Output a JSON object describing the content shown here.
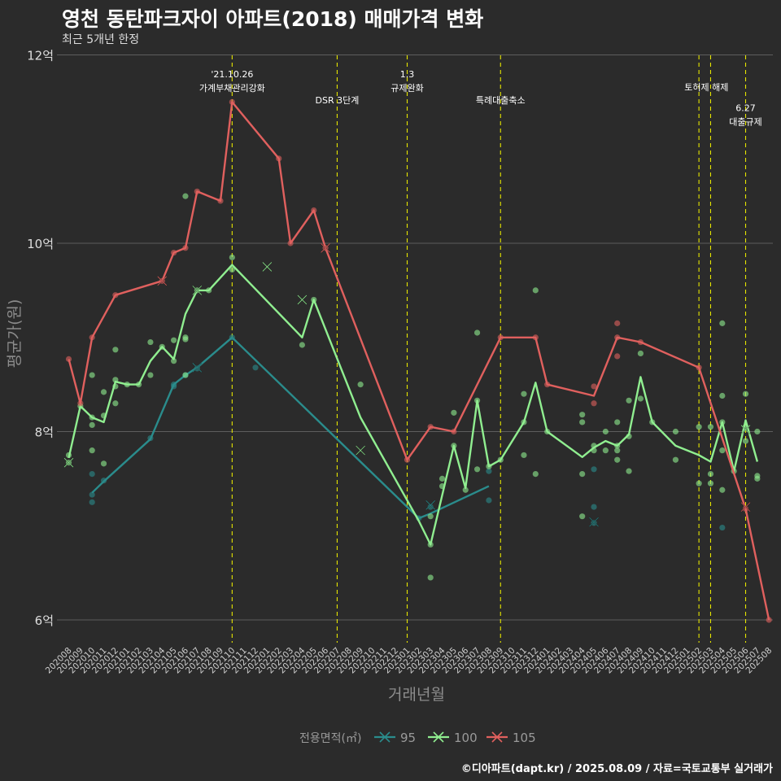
{
  "header": {
    "title": "영천 동탄파크자이 아파트(2018) 매매가격 변화",
    "subtitle": "최근 5개년 한정"
  },
  "caption": "©디아파트(dapt.kr) / 2025.08.09 / 자료=국토교통부 실거래가",
  "chart_data": {
    "type": "line",
    "xlabel": "거래년월",
    "ylabel": "평균가(원)",
    "ylim": [
      5.75,
      12.1
    ],
    "yticks": [
      6,
      8,
      10,
      12
    ],
    "ytick_labels": [
      "6억",
      "8억",
      "10억",
      "12억"
    ],
    "grid": true,
    "legend": {
      "title": "전용면적(㎡)",
      "placement": "bottom",
      "entries": [
        "95",
        "100",
        "105"
      ]
    },
    "x_categories": [
      "202008",
      "202009",
      "202010",
      "202011",
      "202012",
      "202101",
      "202102",
      "202103",
      "202104",
      "202105",
      "202106",
      "202107",
      "202108",
      "202109",
      "202110",
      "202111",
      "202112",
      "202201",
      "202202",
      "202203",
      "202204",
      "202205",
      "202206",
      "202207",
      "202208",
      "202209",
      "202210",
      "202211",
      "202212",
      "202301",
      "202302",
      "202303",
      "202304",
      "202305",
      "202306",
      "202307",
      "202308",
      "202309",
      "202310",
      "202311",
      "202312",
      "202401",
      "202402",
      "202403",
      "202404",
      "202405",
      "202406",
      "202407",
      "202408",
      "202409",
      "202410",
      "202411",
      "202412",
      "202501",
      "202502",
      "202503",
      "202504",
      "202505",
      "202506",
      "202507",
      "202508"
    ],
    "series": [
      {
        "name": "95",
        "color": "#2a8c8c",
        "line": [
          [
            "202010",
            7.35
          ],
          [
            "202011",
            7.47
          ],
          [
            "202103",
            7.92
          ],
          [
            "202105",
            8.5
          ],
          [
            "202106",
            8.6
          ],
          [
            "202107",
            8.68
          ],
          [
            "202110",
            9.0
          ],
          [
            "202302",
            7.08
          ],
          [
            "202303",
            7.13
          ],
          [
            "202308",
            7.42
          ]
        ],
        "points": [
          [
            "202010",
            7.55
          ],
          [
            "202010",
            7.33
          ],
          [
            "202010",
            7.25
          ],
          [
            "202011",
            7.48
          ],
          [
            "202103",
            7.93
          ],
          [
            "202105",
            8.5
          ],
          [
            "202105",
            8.48
          ],
          [
            "202106",
            8.6
          ],
          [
            "202107",
            8.67
          ],
          [
            "202110",
            9.0
          ],
          [
            "202112",
            8.68
          ],
          [
            "202302",
            7.08
          ],
          [
            "202303",
            7.2
          ],
          [
            "202308",
            7.58
          ],
          [
            "202308",
            7.27
          ],
          [
            "202405",
            7.6
          ],
          [
            "202405",
            7.2
          ],
          [
            "202405",
            7.03
          ],
          [
            "202504",
            6.98
          ]
        ],
        "x_marks": [
          [
            "202107",
            8.68
          ],
          [
            "202303",
            7.22
          ],
          [
            "202405",
            7.04
          ]
        ]
      },
      {
        "name": "100",
        "color": "#90ee90",
        "line": [
          [
            "202008",
            7.72
          ],
          [
            "202009",
            8.27
          ],
          [
            "202010",
            8.15
          ],
          [
            "202011",
            8.1
          ],
          [
            "202012",
            8.53
          ],
          [
            "202101",
            8.5
          ],
          [
            "202102",
            8.5
          ],
          [
            "202103",
            8.75
          ],
          [
            "202104",
            8.9
          ],
          [
            "202105",
            8.77
          ],
          [
            "202106",
            9.25
          ],
          [
            "202107",
            9.5
          ],
          [
            "202108",
            9.5
          ],
          [
            "202110",
            9.77
          ],
          [
            "202204",
            9.0
          ],
          [
            "202205",
            9.4
          ],
          [
            "202209",
            8.15
          ],
          [
            "202302",
            7.05
          ],
          [
            "202303",
            6.8
          ],
          [
            "202305",
            7.85
          ],
          [
            "202306",
            7.4
          ],
          [
            "202307",
            8.33
          ],
          [
            "202308",
            7.63
          ],
          [
            "202309",
            7.7
          ],
          [
            "202311",
            8.1
          ],
          [
            "202312",
            8.52
          ],
          [
            "202401",
            8.0
          ],
          [
            "202404",
            7.73
          ],
          [
            "202405",
            7.83
          ],
          [
            "202406",
            7.9
          ],
          [
            "202407",
            7.85
          ],
          [
            "202408",
            7.97
          ],
          [
            "202409",
            8.58
          ],
          [
            "202410",
            8.1
          ],
          [
            "202412",
            7.85
          ],
          [
            "202502",
            7.75
          ],
          [
            "202503",
            7.68
          ],
          [
            "202504",
            8.1
          ],
          [
            "202505",
            7.58
          ],
          [
            "202506",
            8.12
          ],
          [
            "202507",
            7.68
          ]
        ],
        "points": [
          [
            "202008",
            7.75
          ],
          [
            "202008",
            7.67
          ],
          [
            "202009",
            8.27
          ],
          [
            "202010",
            8.6
          ],
          [
            "202010",
            8.15
          ],
          [
            "202010",
            8.07
          ],
          [
            "202010",
            7.8
          ],
          [
            "202011",
            8.42
          ],
          [
            "202011",
            8.17
          ],
          [
            "202011",
            7.66
          ],
          [
            "202012",
            8.87
          ],
          [
            "202012",
            8.55
          ],
          [
            "202012",
            8.48
          ],
          [
            "202012",
            8.3
          ],
          [
            "202101",
            8.5
          ],
          [
            "202102",
            8.5
          ],
          [
            "202103",
            8.95
          ],
          [
            "202103",
            8.6
          ],
          [
            "202104",
            8.9
          ],
          [
            "202105",
            8.97
          ],
          [
            "202105",
            8.75
          ],
          [
            "202106",
            10.5
          ],
          [
            "202106",
            9.0
          ],
          [
            "202106",
            8.98
          ],
          [
            "202106",
            8.6
          ],
          [
            "202107",
            9.5
          ],
          [
            "202108",
            9.5
          ],
          [
            "202110",
            9.85
          ],
          [
            "202110",
            9.72
          ],
          [
            "202204",
            8.92
          ],
          [
            "202205",
            9.4
          ],
          [
            "202209",
            8.5
          ],
          [
            "202303",
            6.8
          ],
          [
            "202303",
            6.45
          ],
          [
            "202303",
            7.1
          ],
          [
            "202304",
            7.5
          ],
          [
            "202304",
            7.42
          ],
          [
            "202305",
            8.2
          ],
          [
            "202305",
            7.85
          ],
          [
            "202306",
            7.38
          ],
          [
            "202307",
            9.05
          ],
          [
            "202307",
            8.33
          ],
          [
            "202307",
            7.6
          ],
          [
            "202308",
            7.63
          ],
          [
            "202309",
            7.7
          ],
          [
            "202311",
            8.4
          ],
          [
            "202311",
            8.1
          ],
          [
            "202311",
            7.75
          ],
          [
            "202312",
            9.5
          ],
          [
            "202312",
            7.55
          ],
          [
            "202401",
            8.0
          ],
          [
            "202404",
            8.18
          ],
          [
            "202404",
            8.1
          ],
          [
            "202404",
            7.55
          ],
          [
            "202404",
            7.1
          ],
          [
            "202405",
            7.85
          ],
          [
            "202405",
            7.8
          ],
          [
            "202406",
            8.0
          ],
          [
            "202406",
            7.8
          ],
          [
            "202407",
            8.1
          ],
          [
            "202407",
            7.85
          ],
          [
            "202407",
            7.8
          ],
          [
            "202407",
            7.7
          ],
          [
            "202408",
            8.33
          ],
          [
            "202408",
            7.95
          ],
          [
            "202408",
            7.58
          ],
          [
            "202409",
            8.83
          ],
          [
            "202409",
            8.35
          ],
          [
            "202410",
            8.1
          ],
          [
            "202412",
            8.0
          ],
          [
            "202412",
            7.7
          ],
          [
            "202502",
            8.05
          ],
          [
            "202502",
            7.45
          ],
          [
            "202503",
            8.05
          ],
          [
            "202503",
            7.55
          ],
          [
            "202503",
            7.45
          ],
          [
            "202504",
            9.15
          ],
          [
            "202504",
            8.38
          ],
          [
            "202504",
            8.1
          ],
          [
            "202504",
            7.8
          ],
          [
            "202504",
            7.38
          ],
          [
            "202505",
            7.58
          ],
          [
            "202506",
            8.4
          ],
          [
            "202506",
            8.05
          ],
          [
            "202506",
            7.9
          ],
          [
            "202507",
            8.0
          ],
          [
            "202507",
            7.53
          ],
          [
            "202507",
            7.5
          ]
        ],
        "x_marks": [
          [
            "202008",
            7.67
          ],
          [
            "202107",
            9.5
          ],
          [
            "202201",
            9.75
          ],
          [
            "202204",
            9.4
          ],
          [
            "202209",
            7.8
          ],
          [
            "202506",
            8.02
          ]
        ]
      },
      {
        "name": "105",
        "color": "#e0605e",
        "line": [
          [
            "202008",
            8.77
          ],
          [
            "202009",
            8.3
          ],
          [
            "202010",
            9.0
          ],
          [
            "202012",
            9.45
          ],
          [
            "202104",
            9.6
          ],
          [
            "202105",
            9.9
          ],
          [
            "202106",
            9.95
          ],
          [
            "202107",
            10.55
          ],
          [
            "202109",
            10.45
          ],
          [
            "202110",
            11.5
          ],
          [
            "202202",
            10.9
          ],
          [
            "202203",
            10.0
          ],
          [
            "202205",
            10.35
          ],
          [
            "202206",
            9.95
          ],
          [
            "202301",
            7.7
          ],
          [
            "202303",
            8.05
          ],
          [
            "202305",
            8.0
          ],
          [
            "202309",
            9.0
          ],
          [
            "202312",
            9.0
          ],
          [
            "202401",
            8.5
          ],
          [
            "202405",
            8.38
          ],
          [
            "202407",
            9.0
          ],
          [
            "202409",
            8.95
          ],
          [
            "202502",
            8.68
          ],
          [
            "202506",
            7.18
          ],
          [
            "202508",
            6.0
          ]
        ],
        "points": [
          [
            "202008",
            8.77
          ],
          [
            "202009",
            8.3
          ],
          [
            "202010",
            9.0
          ],
          [
            "202012",
            9.45
          ],
          [
            "202104",
            9.6
          ],
          [
            "202105",
            9.9
          ],
          [
            "202106",
            9.95
          ],
          [
            "202107",
            10.55
          ],
          [
            "202109",
            10.45
          ],
          [
            "202110",
            11.5
          ],
          [
            "202202",
            10.9
          ],
          [
            "202203",
            10.0
          ],
          [
            "202205",
            10.35
          ],
          [
            "202206",
            9.95
          ],
          [
            "202301",
            7.7
          ],
          [
            "202303",
            8.05
          ],
          [
            "202305",
            8.0
          ],
          [
            "202309",
            9.0
          ],
          [
            "202312",
            9.0
          ],
          [
            "202401",
            8.5
          ],
          [
            "202405",
            8.48
          ],
          [
            "202405",
            8.3
          ],
          [
            "202407",
            9.15
          ],
          [
            "202407",
            9.0
          ],
          [
            "202407",
            8.8
          ],
          [
            "202409",
            8.95
          ],
          [
            "202502",
            8.68
          ],
          [
            "202506",
            7.18
          ],
          [
            "202508",
            6.0
          ]
        ],
        "x_marks": [
          [
            "202104",
            9.6
          ],
          [
            "202206",
            9.95
          ],
          [
            "202506",
            7.2
          ]
        ]
      }
    ],
    "annotations": [
      {
        "x": "202110",
        "lines": [
          "'21.10.26",
          "가계부채관리강화"
        ],
        "row": 0
      },
      {
        "x": "202207",
        "lines": [
          "DSR 3단계"
        ],
        "row": 1
      },
      {
        "x": "202301",
        "lines": [
          "1.3",
          "규제완화"
        ],
        "row": 0
      },
      {
        "x": "202309",
        "lines": [
          "특례대출축소"
        ],
        "row": 1
      },
      {
        "x": "202502",
        "lines": [
          "토허제 해제"
        ],
        "row": 0.5,
        "centerOn": 1
      },
      {
        "x": "202503",
        "lines": [],
        "row": 0
      },
      {
        "x": "202506",
        "lines": [
          "6.27",
          "대출규제"
        ],
        "row": 1.3
      }
    ]
  }
}
